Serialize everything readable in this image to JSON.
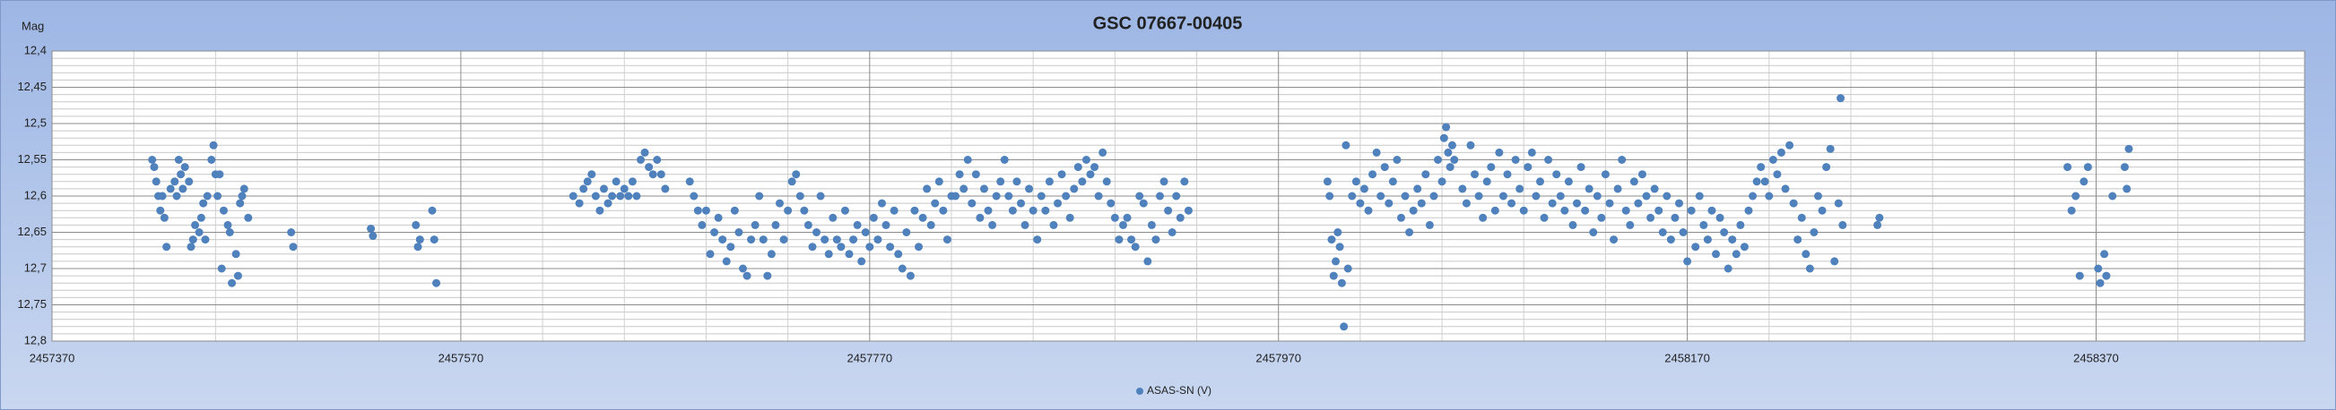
{
  "chart_data": {
    "type": "scatter",
    "title": "GSC 07667-00405",
    "ylabel": "Mag",
    "xlim": [
      2457370,
      2458472
    ],
    "ylim": [
      12.4,
      12.8
    ],
    "y_inverted": true,
    "xticks": [
      2457370,
      2457570,
      2457770,
      2457970,
      2458170,
      2458370
    ],
    "minor_xticks": [
      2457410,
      2457450,
      2457490,
      2457530,
      2457610,
      2457650,
      2457690,
      2457730,
      2457810,
      2457850,
      2457890,
      2457930,
      2458010,
      2458050,
      2458090,
      2458130,
      2458210,
      2458250,
      2458290,
      2458330,
      2458410,
      2458450
    ],
    "yticks": [
      {
        "value": 12.4,
        "label": "12,4"
      },
      {
        "value": 12.45,
        "label": "12,45"
      },
      {
        "value": 12.5,
        "label": "12,5"
      },
      {
        "value": 12.55,
        "label": "12,55"
      },
      {
        "value": 12.6,
        "label": "12,6"
      },
      {
        "value": 12.65,
        "label": "12,65"
      },
      {
        "value": 12.7,
        "label": "12,7"
      },
      {
        "value": 12.75,
        "label": "12,75"
      },
      {
        "value": 12.8,
        "label": "12,8"
      }
    ],
    "minor_yticks": [
      12.41,
      12.42,
      12.43,
      12.44,
      12.46,
      12.47,
      12.48,
      12.49,
      12.51,
      12.52,
      12.53,
      12.54,
      12.56,
      12.57,
      12.58,
      12.59,
      12.61,
      12.62,
      12.63,
      12.64,
      12.66,
      12.67,
      12.68,
      12.69,
      12.71,
      12.72,
      12.73,
      12.74,
      12.76,
      12.77,
      12.78,
      12.79
    ],
    "grid": true,
    "legend": "bottom",
    "x": [
      2457419,
      2457420,
      2457421,
      2457422,
      2457423,
      2457424,
      2457425,
      2457426,
      2457428,
      2457430,
      2457431,
      2457432,
      2457433,
      2457434,
      2457435,
      2457437,
      2457438,
      2457439,
      2457440,
      2457442,
      2457443,
      2457444,
      2457445,
      2457446,
      2457448,
      2457449,
      2457450,
      2457451,
      2457452,
      2457453,
      2457454,
      2457456,
      2457457,
      2457458,
      2457460,
      2457461,
      2457462,
      2457463,
      2457464,
      2457466,
      2457487,
      2457488,
      2457526,
      2457527,
      2457548,
      2457549,
      2457550,
      2457556,
      2457557,
      2457558,
      2457625,
      2457628,
      2457630,
      2457632,
      2457634,
      2457636,
      2457638,
      2457640,
      2457642,
      2457644,
      2457646,
      2457648,
      2457650,
      2457652,
      2457654,
      2457656,
      2457658,
      2457660,
      2457662,
      2457664,
      2457666,
      2457668,
      2457670,
      2457682,
      2457684,
      2457686,
      2457688,
      2457690,
      2457692,
      2457694,
      2457696,
      2457698,
      2457700,
      2457702,
      2457704,
      2457706,
      2457708,
      2457710,
      2457712,
      2457714,
      2457716,
      2457718,
      2457720,
      2457722,
      2457724,
      2457726,
      2457728,
      2457730,
      2457732,
      2457734,
      2457736,
      2457738,
      2457740,
      2457742,
      2457744,
      2457746,
      2457748,
      2457750,
      2457752,
      2457754,
      2457756,
      2457758,
      2457760,
      2457762,
      2457764,
      2457766,
      2457768,
      2457770,
      2457772,
      2457774,
      2457776,
      2457778,
      2457780,
      2457782,
      2457784,
      2457786,
      2457788,
      2457790,
      2457792,
      2457794,
      2457796,
      2457798,
      2457800,
      2457802,
      2457804,
      2457806,
      2457808,
      2457810,
      2457812,
      2457814,
      2457816,
      2457818,
      2457820,
      2457822,
      2457824,
      2457826,
      2457828,
      2457830,
      2457832,
      2457834,
      2457836,
      2457838,
      2457840,
      2457842,
      2457844,
      2457846,
      2457848,
      2457850,
      2457852,
      2457854,
      2457856,
      2457858,
      2457860,
      2457862,
      2457864,
      2457866,
      2457868,
      2457870,
      2457872,
      2457874,
      2457876,
      2457878,
      2457880,
      2457882,
      2457884,
      2457886,
      2457888,
      2457890,
      2457892,
      2457894,
      2457896,
      2457898,
      2457900,
      2457902,
      2457904,
      2457906,
      2457908,
      2457910,
      2457912,
      2457914,
      2457916,
      2457918,
      2457920,
      2457922,
      2457924,
      2457926,
      2457994,
      2457995,
      2457996,
      2457997,
      2457998,
      2457999,
      2458000,
      2458001,
      2458002,
      2458003,
      2458004,
      2458006,
      2458008,
      2458010,
      2458012,
      2458014,
      2458016,
      2458018,
      2458020,
      2458022,
      2458024,
      2458026,
      2458028,
      2458030,
      2458032,
      2458034,
      2458036,
      2458038,
      2458040,
      2458042,
      2458044,
      2458046,
      2458048,
      2458050,
      2458051,
      2458052,
      2458053,
      2458054,
      2458055,
      2458056,
      2458060,
      2458062,
      2458064,
      2458066,
      2458068,
      2458070,
      2458072,
      2458074,
      2458076,
      2458078,
      2458080,
      2458082,
      2458084,
      2458086,
      2458088,
      2458090,
      2458092,
      2458094,
      2458096,
      2458098,
      2458100,
      2458102,
      2458104,
      2458106,
      2458108,
      2458110,
      2458112,
      2458114,
      2458116,
      2458118,
      2458120,
      2458122,
      2458124,
      2458126,
      2458128,
      2458130,
      2458132,
      2458134,
      2458136,
      2458138,
      2458140,
      2458142,
      2458144,
      2458146,
      2458148,
      2458150,
      2458152,
      2458154,
      2458156,
      2458158,
      2458160,
      2458162,
      2458164,
      2458166,
      2458168,
      2458170,
      2458172,
      2458174,
      2458176,
      2458178,
      2458180,
      2458182,
      2458184,
      2458186,
      2458188,
      2458190,
      2458192,
      2458194,
      2458196,
      2458198,
      2458200,
      2458202,
      2458204,
      2458206,
      2458208,
      2458210,
      2458212,
      2458214,
      2458216,
      2458218,
      2458220,
      2458222,
      2458224,
      2458226,
      2458228,
      2458230,
      2458232,
      2458234,
      2458236,
      2458238,
      2458240,
      2458242,
      2458244,
      2458246,
      2458263,
      2458264,
      2458356,
      2458358,
      2458360,
      2458362,
      2458364,
      2458366,
      2458371,
      2458372,
      2458374,
      2458375,
      2458378,
      2458384,
      2458385,
      2458386,
      2458245
    ],
    "series": [
      {
        "name": "ASAS-SN (V)",
        "color": "#4f81bd",
        "values": [
          12.55,
          12.56,
          12.58,
          12.6,
          12.62,
          12.6,
          12.63,
          12.67,
          12.59,
          12.58,
          12.6,
          12.55,
          12.57,
          12.59,
          12.56,
          12.58,
          12.67,
          12.66,
          12.64,
          12.65,
          12.63,
          12.61,
          12.66,
          12.6,
          12.55,
          12.53,
          12.57,
          12.6,
          12.57,
          12.7,
          12.62,
          12.64,
          12.65,
          12.72,
          12.68,
          12.71,
          12.61,
          12.6,
          12.59,
          12.63,
          12.65,
          12.67,
          12.645,
          12.655,
          12.64,
          12.67,
          12.66,
          12.62,
          12.66,
          12.72,
          12.6,
          12.61,
          12.59,
          12.58,
          12.57,
          12.6,
          12.62,
          12.59,
          12.61,
          12.6,
          12.58,
          12.6,
          12.59,
          12.6,
          12.58,
          12.6,
          12.55,
          12.54,
          12.56,
          12.57,
          12.55,
          12.57,
          12.59,
          12.58,
          12.6,
          12.62,
          12.64,
          12.62,
          12.68,
          12.65,
          12.63,
          12.66,
          12.69,
          12.67,
          12.62,
          12.65,
          12.7,
          12.71,
          12.66,
          12.64,
          12.6,
          12.66,
          12.71,
          12.68,
          12.64,
          12.61,
          12.66,
          12.62,
          12.58,
          12.57,
          12.6,
          12.62,
          12.64,
          12.67,
          12.65,
          12.6,
          12.66,
          12.68,
          12.63,
          12.66,
          12.67,
          12.62,
          12.68,
          12.66,
          12.64,
          12.69,
          12.65,
          12.67,
          12.63,
          12.66,
          12.61,
          12.64,
          12.67,
          12.62,
          12.68,
          12.7,
          12.65,
          12.71,
          12.62,
          12.67,
          12.63,
          12.59,
          12.64,
          12.61,
          12.58,
          12.62,
          12.66,
          12.6,
          12.6,
          12.57,
          12.59,
          12.55,
          12.61,
          12.57,
          12.63,
          12.59,
          12.62,
          12.64,
          12.6,
          12.58,
          12.55,
          12.6,
          12.62,
          12.58,
          12.61,
          12.64,
          12.59,
          12.62,
          12.66,
          12.6,
          12.62,
          12.58,
          12.64,
          12.61,
          12.57,
          12.6,
          12.63,
          12.59,
          12.56,
          12.58,
          12.55,
          12.57,
          12.56,
          12.6,
          12.54,
          12.58,
          12.61,
          12.63,
          12.66,
          12.64,
          12.63,
          12.66,
          12.67,
          12.6,
          12.61,
          12.69,
          12.64,
          12.66,
          12.6,
          12.58,
          12.62,
          12.65,
          12.6,
          12.63,
          12.58,
          12.62,
          12.58,
          12.6,
          12.66,
          12.71,
          12.69,
          12.65,
          12.67,
          12.72,
          12.78,
          12.53,
          12.7,
          12.6,
          12.58,
          12.61,
          12.59,
          12.62,
          12.57,
          12.54,
          12.6,
          12.56,
          12.61,
          12.58,
          12.55,
          12.63,
          12.6,
          12.65,
          12.62,
          12.59,
          12.61,
          12.57,
          12.64,
          12.6,
          12.55,
          12.58,
          12.52,
          12.505,
          12.54,
          12.56,
          12.53,
          12.55,
          12.59,
          12.61,
          12.53,
          12.57,
          12.6,
          12.63,
          12.58,
          12.56,
          12.62,
          12.54,
          12.6,
          12.57,
          12.61,
          12.55,
          12.59,
          12.62,
          12.56,
          12.54,
          12.6,
          12.58,
          12.63,
          12.55,
          12.61,
          12.57,
          12.6,
          12.62,
          12.58,
          12.64,
          12.61,
          12.56,
          12.62,
          12.59,
          12.65,
          12.6,
          12.63,
          12.57,
          12.61,
          12.66,
          12.59,
          12.55,
          12.62,
          12.64,
          12.58,
          12.61,
          12.57,
          12.6,
          12.63,
          12.59,
          12.62,
          12.65,
          12.6,
          12.66,
          12.63,
          12.61,
          12.65,
          12.69,
          12.62,
          12.67,
          12.6,
          12.64,
          12.66,
          12.62,
          12.68,
          12.63,
          12.65,
          12.7,
          12.66,
          12.68,
          12.64,
          12.67,
          12.62,
          12.6,
          12.58,
          12.56,
          12.58,
          12.6,
          12.55,
          12.57,
          12.54,
          12.59,
          12.53,
          12.61,
          12.66,
          12.63,
          12.68,
          12.7,
          12.65,
          12.6,
          12.62,
          12.56,
          12.535,
          12.69,
          12.61,
          12.64,
          12.64,
          12.63,
          12.56,
          12.62,
          12.6,
          12.71,
          12.58,
          12.56,
          12.7,
          12.72,
          12.68,
          12.71,
          12.6,
          12.56,
          12.59,
          12.535,
          12.465
        ]
      }
    ]
  }
}
